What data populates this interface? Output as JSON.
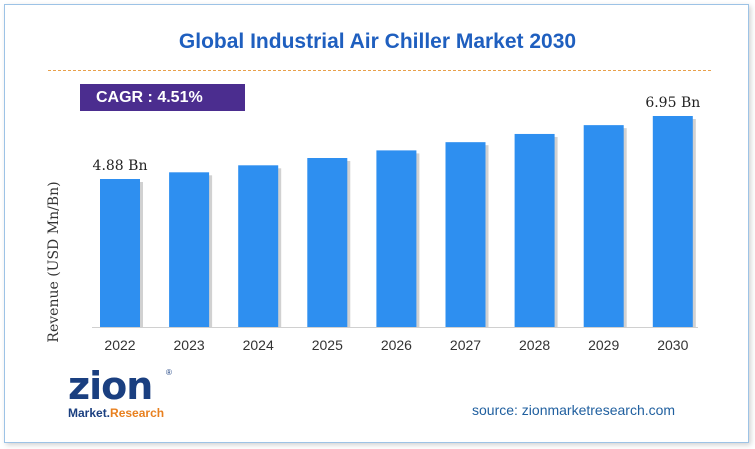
{
  "chart_data": {
    "type": "bar",
    "title": "Global Industrial Air Chiller Market 2030",
    "ylabel": "Revenue (USD Mn/Bn)",
    "categories": [
      "2022",
      "2023",
      "2024",
      "2025",
      "2026",
      "2027",
      "2028",
      "2029",
      "2030"
    ],
    "values": [
      4.88,
      5.1,
      5.33,
      5.57,
      5.82,
      6.09,
      6.36,
      6.65,
      6.95
    ],
    "data_labels": {
      "first": "4.88 Bn",
      "last": "6.95 Bn"
    },
    "ylim": [
      0,
      7.2
    ],
    "bar_color": "#2e8ff0",
    "grid": false,
    "legend": "none"
  },
  "cagr_label": "CAGR : 4.51%",
  "logo": {
    "word": "zion",
    "sub_market": "Market.",
    "sub_research": "Research",
    "reg": "®"
  },
  "source": "source: zionmarketresearch.com",
  "colors": {
    "title": "#1f5fbf",
    "cagr_bg": "#4b2d8f",
    "divider": "#e8a04a",
    "source": "#1f5f9f"
  }
}
